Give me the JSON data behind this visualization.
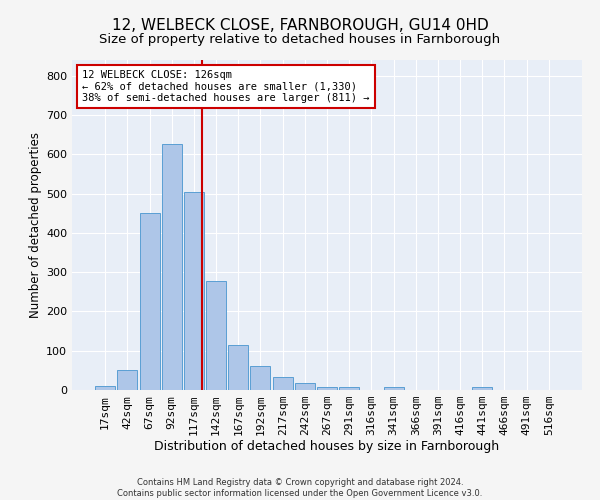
{
  "title": "12, WELBECK CLOSE, FARNBOROUGH, GU14 0HD",
  "subtitle": "Size of property relative to detached houses in Farnborough",
  "xlabel": "Distribution of detached houses by size in Farnborough",
  "ylabel": "Number of detached properties",
  "footnote": "Contains HM Land Registry data © Crown copyright and database right 2024.\nContains public sector information licensed under the Open Government Licence v3.0.",
  "categories": [
    "17sqm",
    "42sqm",
    "67sqm",
    "92sqm",
    "117sqm",
    "142sqm",
    "167sqm",
    "192sqm",
    "217sqm",
    "242sqm",
    "267sqm",
    "291sqm",
    "316sqm",
    "341sqm",
    "366sqm",
    "391sqm",
    "416sqm",
    "441sqm",
    "466sqm",
    "491sqm",
    "516sqm"
  ],
  "values": [
    10,
    52,
    450,
    627,
    505,
    278,
    115,
    62,
    33,
    18,
    8,
    8,
    0,
    8,
    0,
    0,
    0,
    8,
    0,
    0,
    0
  ],
  "bar_color": "#aec6e8",
  "bar_edge_color": "#5a9fd4",
  "vline_color": "#cc0000",
  "annotation_text": "12 WELBECK CLOSE: 126sqm\n← 62% of detached houses are smaller (1,330)\n38% of semi-detached houses are larger (811) →",
  "annotation_box_color": "#ffffff",
  "annotation_box_edge": "#cc0000",
  "ylim": [
    0,
    840
  ],
  "yticks": [
    0,
    100,
    200,
    300,
    400,
    500,
    600,
    700,
    800
  ],
  "background_color": "#e8eef7",
  "fig_background_color": "#f5f5f5",
  "grid_color": "#ffffff",
  "title_fontsize": 11,
  "subtitle_fontsize": 9.5,
  "xlabel_fontsize": 9,
  "ylabel_fontsize": 8.5,
  "tick_fontsize": 8,
  "annot_fontsize": 7.5,
  "footnote_fontsize": 6
}
